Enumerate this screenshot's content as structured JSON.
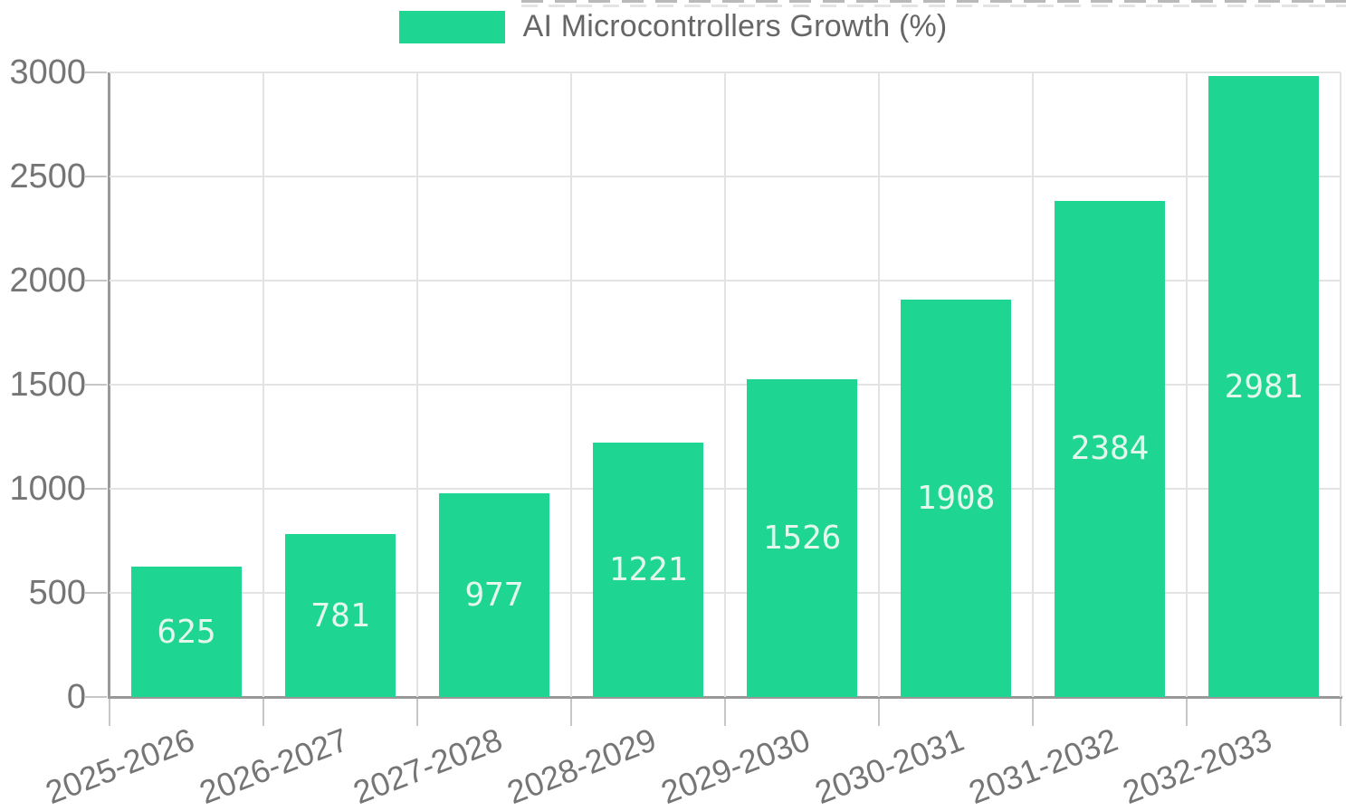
{
  "legend": {
    "label": "AI Microcontrollers Growth (%)",
    "swatch_color": "#1ed692"
  },
  "chart_data": {
    "type": "bar",
    "title": "AI Microcontrollers Growth (%)",
    "series_name": "AI Microcontrollers Growth (%)",
    "categories": [
      "2025-2026",
      "2026-2027",
      "2027-2028",
      "2028-2029",
      "2029-2030",
      "2030-2031",
      "2031-2032",
      "2032-2033"
    ],
    "values": [
      625,
      781,
      977,
      1221,
      1526,
      1908,
      2384,
      2981
    ],
    "bar_labels": [
      "625",
      "781",
      "977",
      "1221",
      "1526",
      "1908",
      "2384",
      "2981"
    ],
    "xlabel": "",
    "ylabel": "",
    "ylim": [
      0,
      3000
    ],
    "y_ticks": [
      0,
      500,
      1000,
      1500,
      2000,
      2500,
      3000
    ],
    "grid": "on",
    "legend_position": "top",
    "bar_color": "#1ed692",
    "bar_label_color": "#e4f7ee",
    "axis_text_color": "#757575",
    "grid_color": "#e3e3e3",
    "axis_line_color": "#999999"
  }
}
